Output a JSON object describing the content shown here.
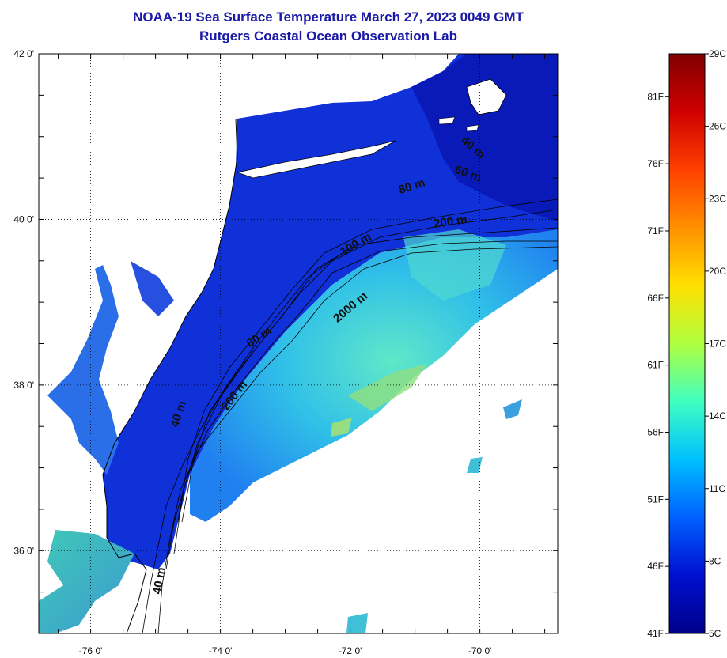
{
  "title": {
    "line1": "NOAA-19 Sea Surface Temperature March 27, 2023 0049 GMT",
    "line2": "Rutgers Coastal Ocean Observation Lab"
  },
  "axes": {
    "lat_ticks": [
      {
        "label": "42 0'",
        "value": 42
      },
      {
        "label": "40 0'",
        "value": 40
      },
      {
        "label": "38 0'",
        "value": 38
      },
      {
        "label": "36 0'",
        "value": 36
      }
    ],
    "lon_ticks": [
      {
        "label": "-76 0'",
        "value": -76
      },
      {
        "label": "-74 0'",
        "value": -74
      },
      {
        "label": "-72 0'",
        "value": -72
      },
      {
        "label": "-70 0'",
        "value": -70
      }
    ],
    "lon_range": [
      -76.8,
      -68.8
    ],
    "lat_range": [
      35.0,
      42.0
    ],
    "grid": "dotted"
  },
  "contour_labels": [
    "40 m",
    "60 m",
    "80 m",
    "200 m",
    "100 m",
    "2000 m",
    "60 m",
    "200 m",
    "40 m",
    "40 m"
  ],
  "colorbar": {
    "celsius": [
      "29C",
      "26C",
      "23C",
      "20C",
      "17C",
      "14C",
      "11C",
      "8C",
      "5C"
    ],
    "fahrenheit": [
      "81F",
      "76F",
      "71F",
      "66F",
      "61F",
      "56F",
      "51F",
      "46F",
      "41F"
    ],
    "colors": [
      "#800000",
      "#d00000",
      "#ff4000",
      "#ff9000",
      "#ffe000",
      "#b0ff40",
      "#40ffc0",
      "#00c0ff",
      "#0060ff",
      "#0010d0",
      "#00008a"
    ]
  },
  "colors": {
    "land": "#ffffff",
    "shelf_water": "#1030d8",
    "deep_shelf": "#0a1ab8",
    "slope_water": "#2090f0",
    "gulfstream_warm": "#50e0d0",
    "warm_patch": "#b0e060",
    "estuary": "#40b0c0",
    "title": "#1a1aa6"
  }
}
